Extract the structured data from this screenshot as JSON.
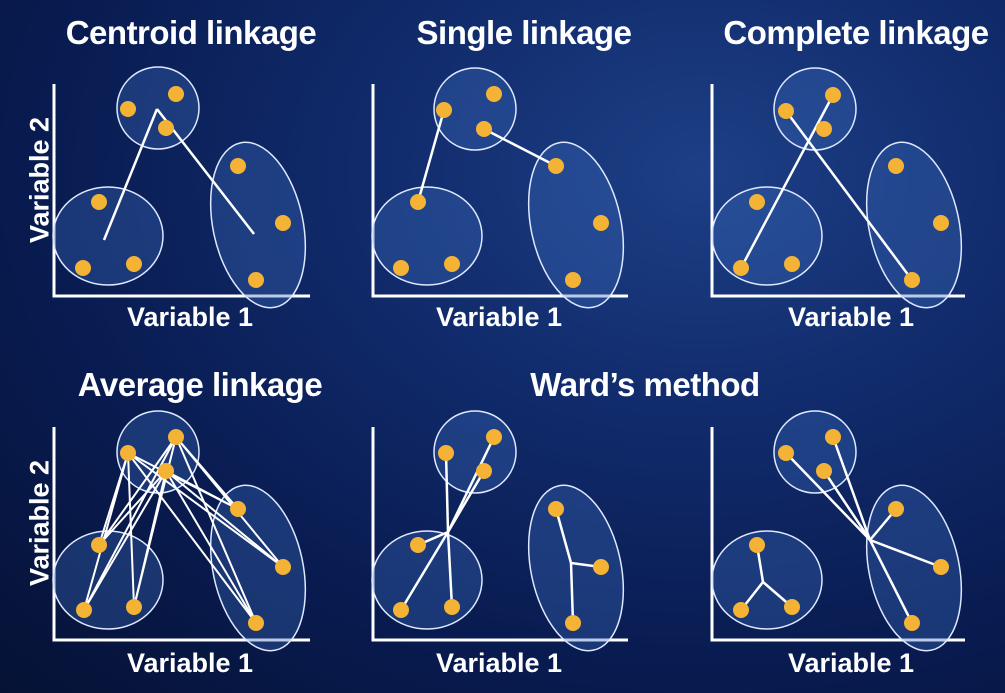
{
  "panels": [
    {
      "title": "Centroid linkage",
      "x_label": "Variable 1",
      "y_label": "Variable 2"
    },
    {
      "title": "Single linkage",
      "x_label": "Variable 1"
    },
    {
      "title": "Complete linkage",
      "x_label": "Variable 1"
    },
    {
      "title": "Average linkage",
      "x_label": "Variable 1",
      "y_label": "Variable 2"
    },
    {
      "title": "Ward’s method",
      "x_label": "Variable 1"
    },
    {
      "title": "",
      "x_label": "Variable 1"
    }
  ],
  "colors": {
    "background": "#0b1f5c",
    "point": "#f5b335",
    "cluster_outline": "#dfe8ff",
    "line": "#ffffff",
    "text": "#ffffff"
  }
}
